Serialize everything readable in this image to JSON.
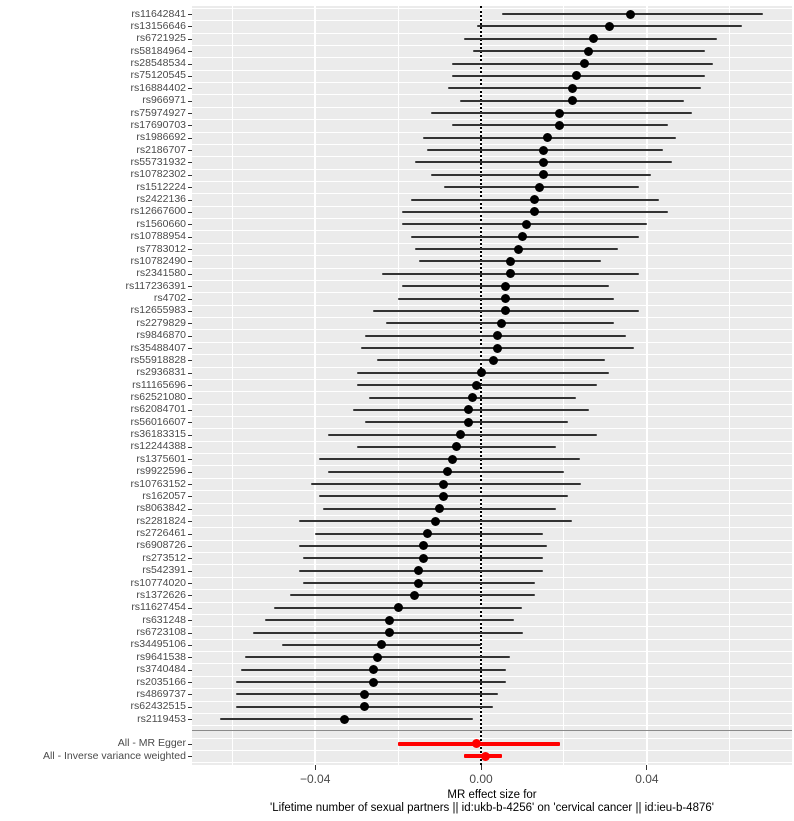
{
  "chart_data": {
    "type": "forest",
    "title": "",
    "xlabel_line1": "MR effect size for",
    "xlabel_line2": "'Lifetime number of sexual partners || id:ukb-b-4256' on 'cervical cancer || id:ieu-b-4876'",
    "xlabel": "MR effect size for 'Lifetime number of sexual partners || id:ukb-b-4256' on 'cervical cancer || id:ieu-b-4876'",
    "ylabel": "",
    "xlim": [
      -0.0697,
      0.075
    ],
    "x_ticks": [
      {
        "label": "−0.04",
        "value": -0.04
      },
      {
        "label": "0.00",
        "value": 0.0
      },
      {
        "label": "0.04",
        "value": 0.04
      }
    ],
    "minor_gridlines": [
      -0.06,
      -0.02,
      0.02,
      0.06
    ],
    "zero_line": 0,
    "grid": "on",
    "legend": "none",
    "snp_color": "#000000",
    "ci_color": "#333333",
    "summary_color": "#FF0000",
    "panel_background": "#EBEBEB",
    "snps": [
      {
        "label": "rs11642841",
        "b": 0.036,
        "lo": 0.005,
        "hi": 0.068
      },
      {
        "label": "rs13156646",
        "b": 0.031,
        "lo": -0.001,
        "hi": 0.063
      },
      {
        "label": "rs6721925",
        "b": 0.027,
        "lo": -0.004,
        "hi": 0.057
      },
      {
        "label": "rs58184964",
        "b": 0.026,
        "lo": -0.002,
        "hi": 0.054
      },
      {
        "label": "rs28548534",
        "b": 0.025,
        "lo": -0.007,
        "hi": 0.056
      },
      {
        "label": "rs75120545",
        "b": 0.023,
        "lo": -0.007,
        "hi": 0.054
      },
      {
        "label": "rs16884402",
        "b": 0.022,
        "lo": -0.008,
        "hi": 0.053
      },
      {
        "label": "rs966971",
        "b": 0.022,
        "lo": -0.005,
        "hi": 0.049
      },
      {
        "label": "rs75974927",
        "b": 0.019,
        "lo": -0.012,
        "hi": 0.051
      },
      {
        "label": "rs17690703",
        "b": 0.019,
        "lo": -0.007,
        "hi": 0.045
      },
      {
        "label": "rs1986692",
        "b": 0.016,
        "lo": -0.014,
        "hi": 0.047
      },
      {
        "label": "rs2186707",
        "b": 0.015,
        "lo": -0.013,
        "hi": 0.044
      },
      {
        "label": "rs55731932",
        "b": 0.015,
        "lo": -0.016,
        "hi": 0.046
      },
      {
        "label": "rs10782302",
        "b": 0.015,
        "lo": -0.012,
        "hi": 0.041
      },
      {
        "label": "rs1512224",
        "b": 0.014,
        "lo": -0.009,
        "hi": 0.038
      },
      {
        "label": "rs2422136",
        "b": 0.013,
        "lo": -0.017,
        "hi": 0.043
      },
      {
        "label": "rs12667600",
        "b": 0.013,
        "lo": -0.019,
        "hi": 0.045
      },
      {
        "label": "rs1560660",
        "b": 0.011,
        "lo": -0.019,
        "hi": 0.04
      },
      {
        "label": "rs10788954",
        "b": 0.01,
        "lo": -0.017,
        "hi": 0.038
      },
      {
        "label": "rs7783012",
        "b": 0.009,
        "lo": -0.016,
        "hi": 0.033
      },
      {
        "label": "rs10782490",
        "b": 0.007,
        "lo": -0.015,
        "hi": 0.029
      },
      {
        "label": "rs2341580",
        "b": 0.007,
        "lo": -0.024,
        "hi": 0.038
      },
      {
        "label": "rs117236391",
        "b": 0.006,
        "lo": -0.019,
        "hi": 0.031
      },
      {
        "label": "rs4702",
        "b": 0.006,
        "lo": -0.02,
        "hi": 0.032
      },
      {
        "label": "rs12655983",
        "b": 0.006,
        "lo": -0.026,
        "hi": 0.038
      },
      {
        "label": "rs2279829",
        "b": 0.005,
        "lo": -0.023,
        "hi": 0.032
      },
      {
        "label": "rs9846870",
        "b": 0.004,
        "lo": -0.028,
        "hi": 0.035
      },
      {
        "label": "rs35488407",
        "b": 0.004,
        "lo": -0.029,
        "hi": 0.037
      },
      {
        "label": "rs55918828",
        "b": 0.003,
        "lo": -0.025,
        "hi": 0.03
      },
      {
        "label": "rs2936831",
        "b": 0.0,
        "lo": -0.03,
        "hi": 0.031
      },
      {
        "label": "rs11165696",
        "b": -0.001,
        "lo": -0.03,
        "hi": 0.028
      },
      {
        "label": "rs62521080",
        "b": -0.002,
        "lo": -0.027,
        "hi": 0.023
      },
      {
        "label": "rs62084701",
        "b": -0.003,
        "lo": -0.031,
        "hi": 0.026
      },
      {
        "label": "rs56016607",
        "b": -0.003,
        "lo": -0.028,
        "hi": 0.021
      },
      {
        "label": "rs36183315",
        "b": -0.005,
        "lo": -0.037,
        "hi": 0.028
      },
      {
        "label": "rs12244388",
        "b": -0.006,
        "lo": -0.03,
        "hi": 0.018
      },
      {
        "label": "rs1375601",
        "b": -0.007,
        "lo": -0.039,
        "hi": 0.024
      },
      {
        "label": "rs9922596",
        "b": -0.008,
        "lo": -0.037,
        "hi": 0.02
      },
      {
        "label": "rs10763152",
        "b": -0.009,
        "lo": -0.041,
        "hi": 0.024
      },
      {
        "label": "rs162057",
        "b": -0.009,
        "lo": -0.039,
        "hi": 0.021
      },
      {
        "label": "rs8063842",
        "b": -0.01,
        "lo": -0.038,
        "hi": 0.018
      },
      {
        "label": "rs2281824",
        "b": -0.011,
        "lo": -0.044,
        "hi": 0.022
      },
      {
        "label": "rs2726461",
        "b": -0.013,
        "lo": -0.04,
        "hi": 0.015
      },
      {
        "label": "rs6908726",
        "b": -0.014,
        "lo": -0.044,
        "hi": 0.016
      },
      {
        "label": "rs273512",
        "b": -0.014,
        "lo": -0.043,
        "hi": 0.015
      },
      {
        "label": "rs542391",
        "b": -0.015,
        "lo": -0.044,
        "hi": 0.015
      },
      {
        "label": "rs10774020",
        "b": -0.015,
        "lo": -0.043,
        "hi": 0.013
      },
      {
        "label": "rs1372626",
        "b": -0.016,
        "lo": -0.046,
        "hi": 0.013
      },
      {
        "label": "rs11627454",
        "b": -0.02,
        "lo": -0.05,
        "hi": 0.01
      },
      {
        "label": "rs631248",
        "b": -0.022,
        "lo": -0.052,
        "hi": 0.008
      },
      {
        "label": "rs6723108",
        "b": -0.022,
        "lo": -0.055,
        "hi": 0.01
      },
      {
        "label": "rs34495106",
        "b": -0.024,
        "lo": -0.048,
        "hi": 0.0
      },
      {
        "label": "rs9641538",
        "b": -0.025,
        "lo": -0.057,
        "hi": 0.007
      },
      {
        "label": "rs3740484",
        "b": -0.026,
        "lo": -0.058,
        "hi": 0.006
      },
      {
        "label": "rs2035166",
        "b": -0.026,
        "lo": -0.059,
        "hi": 0.006
      },
      {
        "label": "rs4869737",
        "b": -0.028,
        "lo": -0.059,
        "hi": 0.004
      },
      {
        "label": "rs62432515",
        "b": -0.028,
        "lo": -0.059,
        "hi": 0.003
      },
      {
        "label": "rs2119453",
        "b": -0.033,
        "lo": -0.063,
        "hi": -0.002
      }
    ],
    "summary": [
      {
        "label": "All - MR Egger",
        "b": -0.001,
        "lo": -0.02,
        "hi": 0.019
      },
      {
        "label": "All - Inverse variance weighted",
        "b": 0.001,
        "lo": -0.004,
        "hi": 0.005
      }
    ]
  }
}
